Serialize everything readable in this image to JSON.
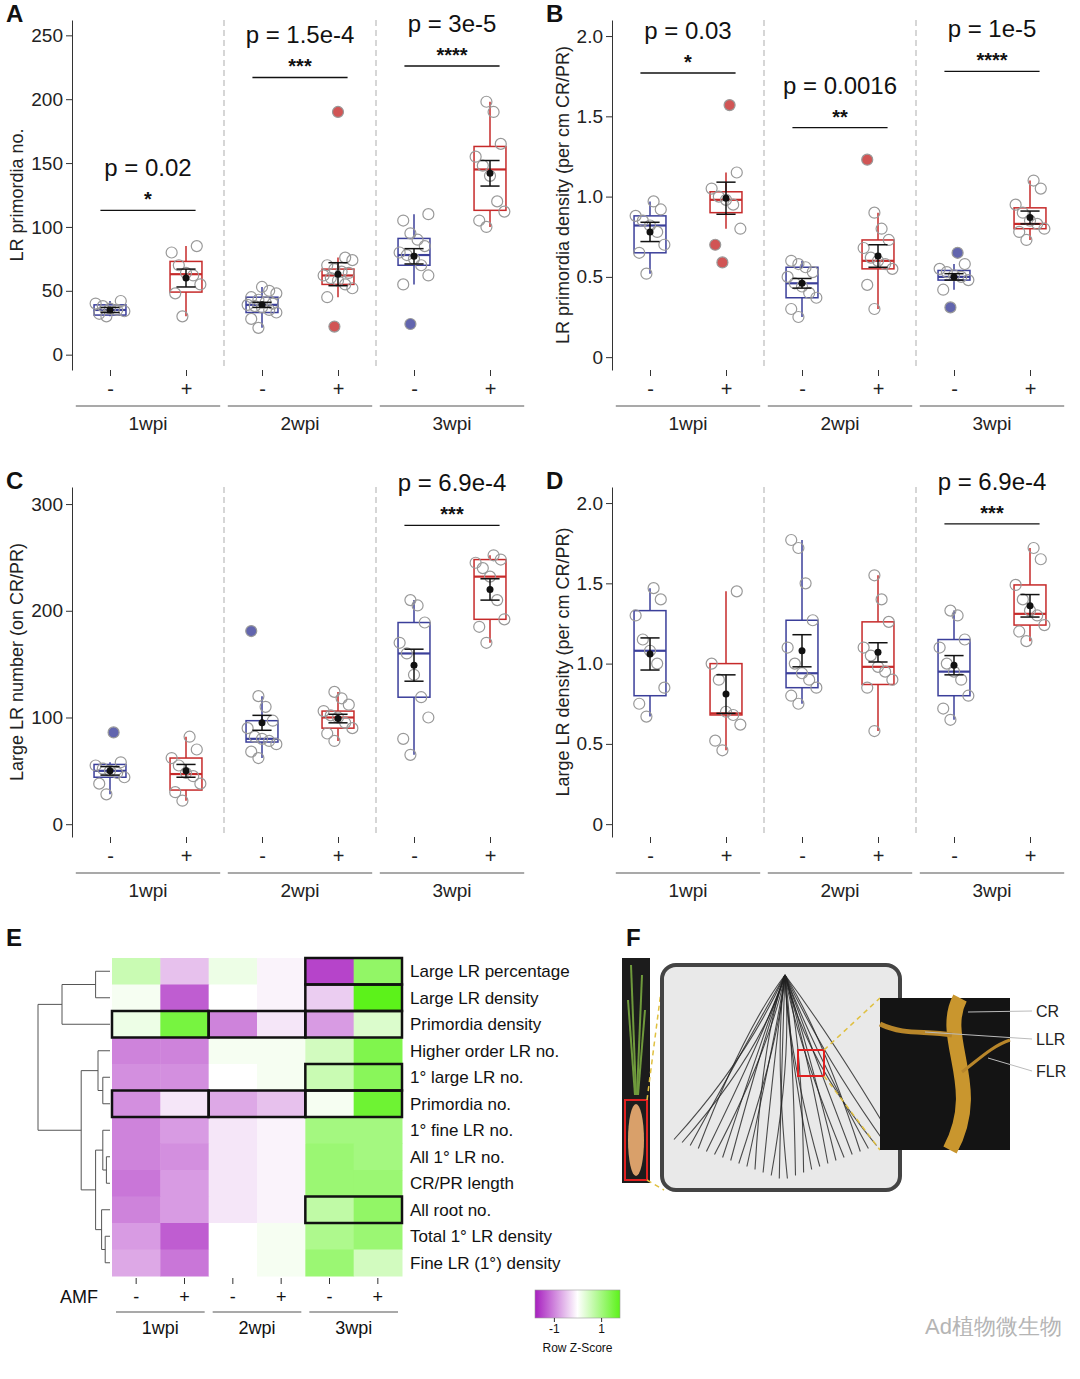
{
  "chart_data": [
    {
      "type": "box",
      "title": "A",
      "ylabel": "LR primordia no.",
      "ylim": [
        -12,
        262
      ],
      "yticks": [
        0,
        50,
        100,
        150,
        200,
        250
      ],
      "categories": [
        "-",
        "+",
        "-",
        "+",
        "-",
        "+"
      ],
      "groups": [
        "1wpi",
        "2wpi",
        "3wpi"
      ],
      "colors": [
        "#3b3f9a",
        "#c62a2a",
        "#3b3f9a",
        "#c62a2a",
        "#3b3f9a",
        "#c62a2a"
      ],
      "boxes": [
        {
          "low": 30,
          "q1": 31,
          "median": 35,
          "q3": 39,
          "high": 42,
          "mean": 35,
          "error": 2,
          "points": [
            30,
            32,
            34,
            35,
            36,
            38,
            40,
            42
          ]
        },
        {
          "low": 30,
          "q1": 49,
          "median": 63,
          "q3": 73,
          "high": 85,
          "mean": 60,
          "error": 7,
          "points": [
            30,
            48,
            55,
            62,
            64,
            70,
            80,
            85
          ]
        },
        {
          "low": 21,
          "q1": 33,
          "median": 39,
          "q3": 45,
          "high": 53,
          "mean": 39,
          "error": 2,
          "points": [
            21,
            28,
            33,
            35,
            37,
            38,
            39,
            40,
            41,
            43,
            45,
            48,
            50,
            53
          ]
        },
        {
          "low": 45,
          "q1": 55,
          "median": 62,
          "q3": 67,
          "high": 76,
          "mean": 63,
          "error": 9,
          "points": [
            22,
            45,
            52,
            55,
            58,
            60,
            62,
            64,
            65,
            67,
            70,
            74,
            76,
            190
          ]
        },
        {
          "low": 55,
          "q1": 70,
          "median": 78,
          "q3": 91,
          "high": 110,
          "mean": 77,
          "error": 6,
          "points": [
            24,
            55,
            62,
            70,
            75,
            78,
            80,
            85,
            90,
            95,
            105,
            110
          ]
        },
        {
          "low": 100,
          "q1": 113,
          "median": 145,
          "q3": 163,
          "high": 198,
          "mean": 142,
          "error": 10,
          "points": [
            100,
            105,
            112,
            120,
            140,
            148,
            155,
            165,
            190,
            198
          ]
        }
      ],
      "annotations": [
        {
          "group": 0,
          "y": 113,
          "p": "p = 0.02",
          "stars": "*"
        },
        {
          "group": 1,
          "y": 217,
          "p": "p = 1.5e-4",
          "stars": "***"
        },
        {
          "group": 2,
          "y": 226,
          "p": "p = 3e-5",
          "stars": "****"
        }
      ]
    },
    {
      "type": "box",
      "title": "B",
      "ylabel": "LR primordia density (per cm CR/PR)",
      "ylim": [
        -0.08,
        2.1
      ],
      "yticks": [
        0,
        0.5,
        {
          "value": 1,
          "label": "1.0"
        },
        1.5,
        {
          "value": 2,
          "label": "2.0"
        }
      ],
      "categories": [
        "-",
        "+",
        "-",
        "+",
        "-",
        "+"
      ],
      "groups": [
        "1wpi",
        "2wpi",
        "3wpi"
      ],
      "colors": [
        "#3b3f9a",
        "#c62a2a",
        "#3b3f9a",
        "#c62a2a",
        "#3b3f9a",
        "#c62a2a"
      ],
      "boxes": [
        {
          "low": 0.52,
          "q1": 0.65,
          "median": 0.82,
          "q3": 0.88,
          "high": 0.97,
          "mean": 0.78,
          "error": 0.06,
          "points": [
            0.52,
            0.65,
            0.7,
            0.78,
            0.82,
            0.85,
            0.88,
            0.92,
            0.97
          ]
        },
        {
          "low": 0.8,
          "q1": 0.9,
          "median": 0.98,
          "q3": 1.03,
          "high": 1.15,
          "mean": 0.99,
          "error": 0.1,
          "points": [
            0.59,
            0.7,
            0.8,
            0.95,
            0.98,
            1.0,
            1.05,
            1.15,
            1.57
          ]
        },
        {
          "low": 0.25,
          "q1": 0.37,
          "median": 0.46,
          "q3": 0.56,
          "high": 0.6,
          "mean": 0.46,
          "error": 0.03,
          "points": [
            0.25,
            0.3,
            0.37,
            0.4,
            0.44,
            0.46,
            0.5,
            0.53,
            0.56,
            0.58,
            0.6
          ]
        },
        {
          "low": 0.3,
          "q1": 0.55,
          "median": 0.6,
          "q3": 0.73,
          "high": 0.9,
          "mean": 0.63,
          "error": 0.07,
          "points": [
            0.3,
            0.45,
            0.55,
            0.58,
            0.6,
            0.62,
            0.68,
            0.73,
            0.8,
            0.9,
            1.23
          ]
        },
        {
          "low": 0.42,
          "q1": 0.48,
          "median": 0.5,
          "q3": 0.54,
          "high": 0.58,
          "mean": 0.5,
          "error": 0.02,
          "points": [
            0.31,
            0.42,
            0.48,
            0.5,
            0.51,
            0.53,
            0.55,
            0.58,
            0.65
          ]
        },
        {
          "low": 0.73,
          "q1": 0.8,
          "median": 0.83,
          "q3": 0.93,
          "high": 1.1,
          "mean": 0.87,
          "error": 0.04,
          "points": [
            0.73,
            0.78,
            0.8,
            0.83,
            0.85,
            0.9,
            0.95,
            1.05,
            1.1
          ]
        }
      ],
      "annotations": [
        {
          "group": 0,
          "y": 1.77,
          "p": "p = 0.03",
          "stars": "*"
        },
        {
          "group": 1,
          "y": 1.43,
          "p": "p = 0.0016",
          "stars": "**"
        },
        {
          "group": 2,
          "y": 1.78,
          "p": "p = 1e-5",
          "stars": "****"
        }
      ]
    },
    {
      "type": "box",
      "title": "C",
      "ylabel": "Large LR number (on CR/PR)",
      "ylim": [
        -12,
        316
      ],
      "yticks": [
        0,
        100,
        200,
        300
      ],
      "categories": [
        "-",
        "+",
        "-",
        "+",
        "-",
        "+"
      ],
      "groups": [
        "1wpi",
        "2wpi",
        "3wpi"
      ],
      "colors": [
        "#3b3f9a",
        "#c62a2a",
        "#3b3f9a",
        "#c62a2a",
        "#3b3f9a",
        "#c62a2a"
      ],
      "boxes": [
        {
          "low": 28,
          "q1": 44,
          "median": 50,
          "q3": 56,
          "high": 58,
          "mean": 50,
          "error": 4,
          "points": [
            28,
            38,
            44,
            48,
            50,
            52,
            55,
            58,
            86
          ]
        },
        {
          "low": 22,
          "q1": 32,
          "median": 47,
          "q3": 62,
          "high": 82,
          "mean": 50,
          "error": 6,
          "points": [
            22,
            30,
            38,
            45,
            48,
            55,
            62,
            70,
            82
          ]
        },
        {
          "low": 62,
          "q1": 77,
          "median": 80,
          "q3": 97,
          "high": 120,
          "mean": 95,
          "error": 7,
          "points": [
            62,
            68,
            75,
            78,
            80,
            82,
            90,
            97,
            110,
            120,
            181
          ]
        },
        {
          "low": 78,
          "q1": 90,
          "median": 100,
          "q3": 106,
          "high": 124,
          "mean": 99,
          "error": 4,
          "points": [
            78,
            85,
            90,
            95,
            100,
            102,
            106,
            112,
            118,
            124
          ]
        },
        {
          "low": 65,
          "q1": 119,
          "median": 160,
          "q3": 189,
          "high": 210,
          "mean": 149,
          "error": 15,
          "points": [
            65,
            80,
            100,
            119,
            140,
            160,
            170,
            189,
            205,
            210
          ]
        },
        {
          "low": 170,
          "q1": 192,
          "median": 232,
          "q3": 248,
          "high": 252,
          "mean": 220,
          "error": 10,
          "points": [
            170,
            185,
            192,
            210,
            232,
            240,
            245,
            248,
            252
          ]
        }
      ],
      "annotations": [
        {
          "group": 2,
          "y": 280,
          "p": "p = 6.9e-4",
          "stars": "***"
        }
      ]
    },
    {
      "type": "box",
      "title": "D",
      "ylabel": "Large LR density (per cm CR/PR)",
      "ylim": [
        -0.08,
        2.1
      ],
      "yticks": [
        0,
        0.5,
        {
          "value": 1,
          "label": "1.0"
        },
        1.5,
        {
          "value": 2,
          "label": "2.0"
        }
      ],
      "categories": [
        "-",
        "+",
        "-",
        "+",
        "-",
        "+"
      ],
      "groups": [
        "1wpi",
        "2wpi",
        "3wpi"
      ],
      "colors": [
        "#3b3f9a",
        "#c62a2a",
        "#3b3f9a",
        "#c62a2a",
        "#3b3f9a",
        "#c62a2a"
      ],
      "boxes": [
        {
          "low": 0.67,
          "q1": 0.8,
          "median": 1.08,
          "q3": 1.33,
          "high": 1.47,
          "mean": 1.06,
          "error": 0.1,
          "points": [
            0.67,
            0.75,
            0.85,
            1.0,
            1.08,
            1.15,
            1.3,
            1.4,
            1.47
          ]
        },
        {
          "low": 0.46,
          "q1": 0.68,
          "median": 0.69,
          "q3": 1.0,
          "high": 1.45,
          "mean": 0.81,
          "error": 0.12,
          "points": [
            0.46,
            0.52,
            0.62,
            0.68,
            0.7,
            0.9,
            1.0,
            1.45
          ]
        },
        {
          "low": 0.75,
          "q1": 0.85,
          "median": 0.94,
          "q3": 1.27,
          "high": 1.77,
          "mean": 1.08,
          "error": 0.1,
          "points": [
            0.75,
            0.8,
            0.85,
            0.9,
            0.94,
            1.0,
            1.1,
            1.27,
            1.5,
            1.72,
            1.77
          ]
        },
        {
          "low": 0.58,
          "q1": 0.87,
          "median": 0.98,
          "q3": 1.26,
          "high": 1.55,
          "mean": 1.07,
          "error": 0.06,
          "points": [
            0.58,
            0.85,
            0.9,
            0.95,
            0.98,
            1.05,
            1.1,
            1.26,
            1.4,
            1.55
          ]
        },
        {
          "low": 0.65,
          "q1": 0.8,
          "median": 0.95,
          "q3": 1.15,
          "high": 1.33,
          "mean": 0.99,
          "error": 0.06,
          "points": [
            0.65,
            0.72,
            0.8,
            0.9,
            0.95,
            1.0,
            1.1,
            1.15,
            1.3,
            1.33
          ]
        },
        {
          "low": 1.14,
          "q1": 1.24,
          "median": 1.31,
          "q3": 1.49,
          "high": 1.72,
          "mean": 1.36,
          "error": 0.07,
          "points": [
            1.14,
            1.2,
            1.24,
            1.3,
            1.33,
            1.4,
            1.49,
            1.65,
            1.72
          ]
        }
      ],
      "annotations": [
        {
          "group": 2,
          "y": 1.87,
          "p": "p = 6.9e-4",
          "stars": "***"
        }
      ]
    },
    {
      "type": "heatmap",
      "title": "E",
      "xlabel": "AMF",
      "categories": [
        "-",
        "+",
        "-",
        "+",
        "-",
        "+"
      ],
      "groups": [
        "1wpi",
        "2wpi",
        "3wpi"
      ],
      "rows": [
        "Large LR percentage",
        "Large LR density",
        "Primordia density",
        "Higher order LR no.",
        "1° large LR no.",
        "Primordia no.",
        "1° fine LR no.",
        "All 1° LR no.",
        "CR/PR length",
        "All root no.",
        "Total 1° LR density",
        "Fine LR (1°) density"
      ],
      "values": [
        [
          0.6,
          -0.5,
          0.2,
          -0.1,
          -1.5,
          1.2
        ],
        [
          0.1,
          -1.3,
          0.0,
          -0.1,
          -0.4,
          1.8
        ],
        [
          0.2,
          1.5,
          -1.0,
          -0.2,
          -0.8,
          0.4
        ],
        [
          -1.0,
          -1.0,
          0.1,
          0.1,
          0.5,
          1.4
        ],
        [
          -0.9,
          -0.9,
          0.0,
          0.1,
          0.6,
          1.3
        ],
        [
          -0.9,
          -0.2,
          -0.7,
          -0.5,
          0.1,
          1.6
        ],
        [
          -1.0,
          -0.8,
          -0.2,
          -0.1,
          1.0,
          1.0
        ],
        [
          -1.0,
          -0.9,
          -0.2,
          -0.1,
          1.1,
          1.0
        ],
        [
          -1.1,
          -0.8,
          -0.2,
          -0.1,
          1.1,
          1.1
        ],
        [
          -1.0,
          -0.8,
          -0.2,
          -0.1,
          0.7,
          1.2
        ],
        [
          -0.8,
          -1.3,
          0.0,
          0.1,
          0.9,
          1.1
        ],
        [
          -0.7,
          -1.1,
          0.0,
          0.1,
          1.1,
          0.5
        ]
      ],
      "highlights": [
        [
          0,
          4,
          5
        ],
        [
          1,
          4,
          5
        ],
        [
          2,
          0,
          1
        ],
        [
          2,
          2,
          3
        ],
        [
          2,
          4,
          5
        ],
        [
          4,
          4,
          5
        ],
        [
          5,
          0,
          1
        ],
        [
          5,
          2,
          3
        ],
        [
          5,
          4,
          5
        ],
        [
          9,
          4,
          5
        ]
      ],
      "dendrogram": {
        "h": 3.0,
        "children": [
          {
            "h": 2.0,
            "children": [
              {
                "h": 0.6,
                "children": [
                  {
                    "leaf": 0
                  },
                  {
                    "leaf": 1
                  }
                ]
              },
              {
                "leaf": 2
              }
            ]
          },
          {
            "h": 1.2,
            "children": [
              {
                "h": 0.5,
                "children": [
                  {
                    "leaf": 3
                  },
                  {
                    "h": 0.3,
                    "children": [
                      {
                        "leaf": 4
                      },
                      {
                        "leaf": 5
                      }
                    ]
                  }
                ]
              },
              {
                "h": 0.6,
                "children": [
                  {
                    "h": 0.3,
                    "children": [
                      {
                        "leaf": 6
                      },
                      {
                        "h": 0.15,
                        "children": [
                          {
                            "leaf": 7
                          },
                          {
                            "leaf": 8
                          }
                        ]
                      }
                    ]
                  },
                  {
                    "h": 0.35,
                    "children": [
                      {
                        "leaf": 9
                      },
                      {
                        "h": 0.2,
                        "children": [
                          {
                            "leaf": 10
                          },
                          {
                            "leaf": 11
                          }
                        ]
                      }
                    ]
                  }
                ]
              }
            ]
          }
        ]
      },
      "colorbar": {
        "range": [
          -1.8,
          1.8
        ],
        "ticks": [
          -1,
          1
        ],
        "label": "Row Z-Score",
        "colors": [
          "#a71fbf",
          "#ffffff",
          "#5cf21a"
        ]
      }
    }
  ],
  "panel_F": {
    "title": "F",
    "labels": [
      "CR",
      "LLR",
      "FLR"
    ]
  },
  "watermark": "Ad植物微生物"
}
